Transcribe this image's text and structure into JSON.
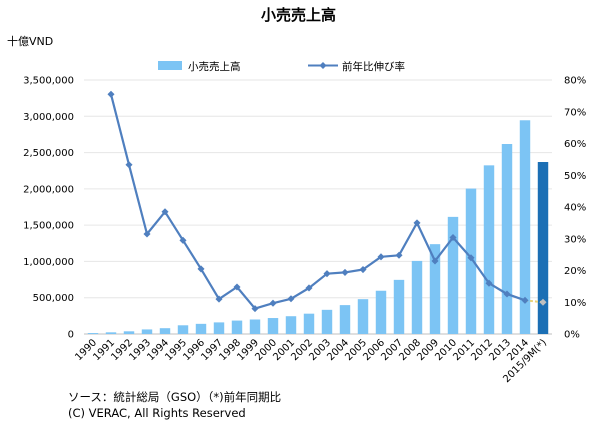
{
  "chart_data": {
    "type": "bar+line",
    "title": "小売売上高",
    "ylabel_left": "十億VND",
    "ylim_left": [
      0,
      3500000
    ],
    "yticks_left": [
      "0",
      "500,000",
      "1,000,000",
      "1,500,000",
      "2,000,000",
      "2,500,000",
      "3,000,000",
      "3,500,000"
    ],
    "ylim_right": [
      0,
      80
    ],
    "yticks_right": [
      "0%",
      "10%",
      "20%",
      "30%",
      "40%",
      "50%",
      "60%",
      "70%",
      "80%"
    ],
    "categories": [
      "1990",
      "1991",
      "1992",
      "1993",
      "1994",
      "1995",
      "1996",
      "1997",
      "1998",
      "1999",
      "2000",
      "2001",
      "2002",
      "2003",
      "2004",
      "2005",
      "2006",
      "2007",
      "2008",
      "2009",
      "2010",
      "2011",
      "2012",
      "2013",
      "2014",
      "2015/9M(*)"
    ],
    "series": [
      {
        "name": "小売売上高",
        "kind": "bar",
        "color": "#7cc4f4",
        "highlight_color": "#1b6fb5",
        "values": [
          13000,
          23000,
          37000,
          63000,
          80000,
          120000,
          140000,
          160000,
          185000,
          200000,
          220000,
          245000,
          280000,
          333000,
          398000,
          480000,
          596000,
          746000,
          1007000,
          1238000,
          1614000,
          2004000,
          2324000,
          2618000,
          2945000,
          2370000
        ]
      },
      {
        "name": "前年比伸び率",
        "kind": "line",
        "color": "#4f7fbf",
        "values": [
          null,
          75.5,
          53.3,
          31.5,
          38.5,
          29.5,
          20.5,
          11.0,
          14.8,
          8.0,
          9.7,
          11.1,
          14.5,
          19.0,
          19.4,
          20.3,
          24.3,
          24.8,
          35.0,
          23.0,
          30.4,
          24.0,
          16.0,
          12.6,
          10.6,
          10.0
        ]
      }
    ],
    "legend_position": "top"
  },
  "footer": {
    "source": "ソース：統計総局（GSO）（*)前年同期比",
    "copyright": "(C) VERAC, All Rights Reserved"
  }
}
